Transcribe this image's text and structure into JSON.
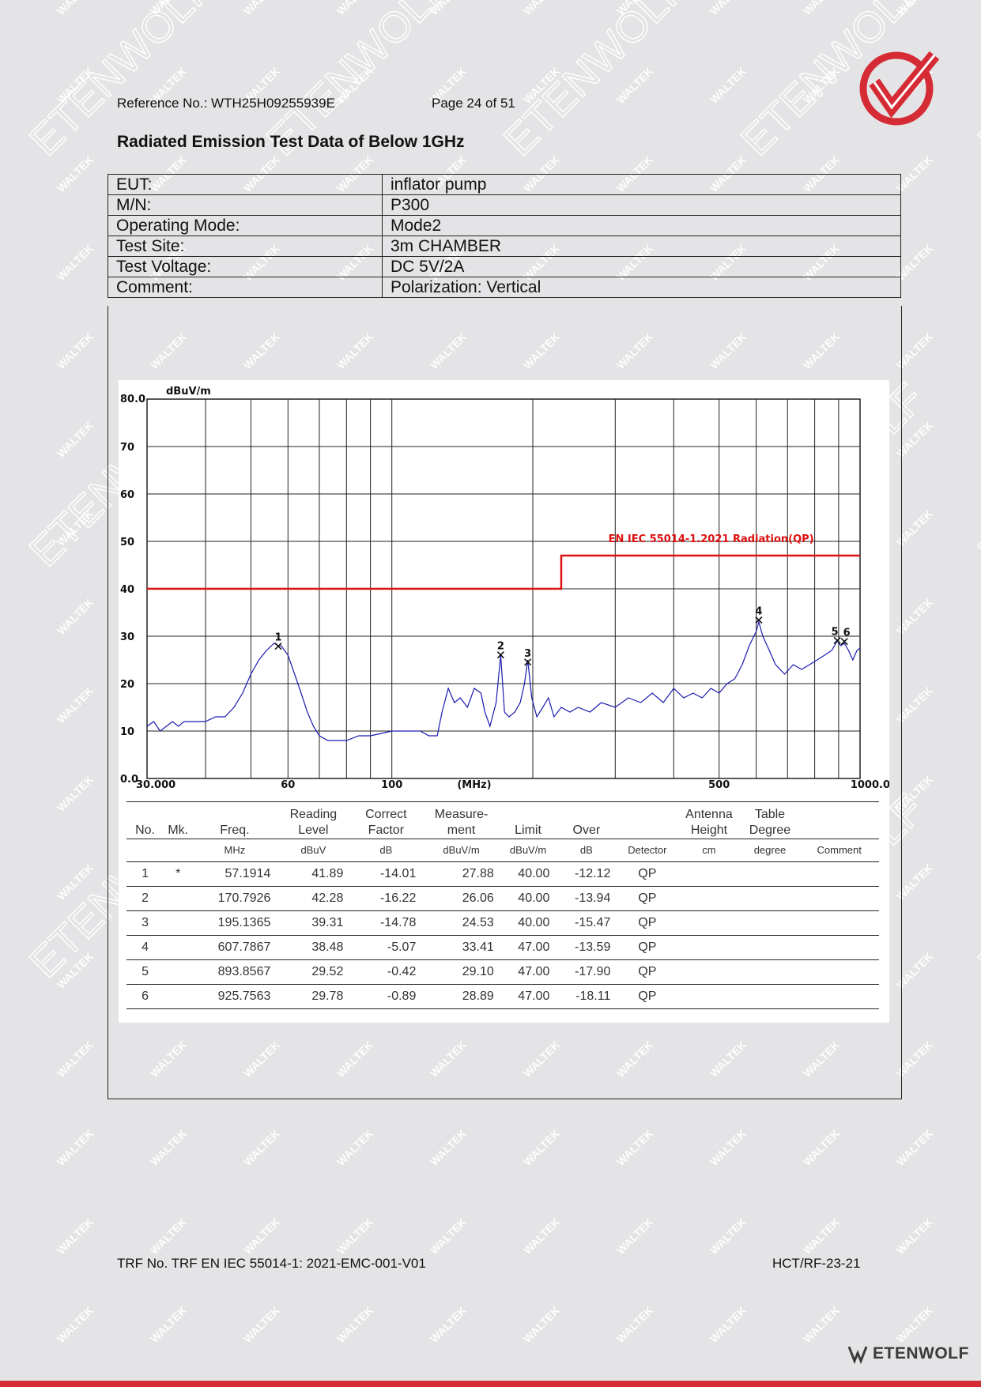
{
  "header": {
    "reference": "Reference No.: WTH25H09255939E",
    "page": "Page 24 of 51"
  },
  "title": "Radiated Emission Test Data of Below 1GHz",
  "info": [
    {
      "label": "EUT:",
      "value": "inflator pump"
    },
    {
      "label": "M/N:",
      "value": "P300"
    },
    {
      "label": "Operating Mode:",
      "value": "Mode2"
    },
    {
      "label": "Test Site:",
      "value": "3m CHAMBER"
    },
    {
      "label": "Test Voltage:",
      "value": "DC 5V/2A"
    },
    {
      "label": "Comment:",
      "value": "Polarization: Vertical"
    }
  ],
  "chart_data": {
    "type": "line",
    "ylabel": "dBuV/m",
    "xlabel": "(MHz)",
    "x_scale": "log",
    "xlim": [
      30,
      1000
    ],
    "ylim": [
      0,
      80
    ],
    "y_ticks": [
      "80.0",
      "70",
      "60",
      "50",
      "40",
      "30",
      "20",
      "10",
      "0.0"
    ],
    "x_ticks": [
      {
        "label": "30.000",
        "value": 30
      },
      {
        "label": "60",
        "value": 60
      },
      {
        "label": "100",
        "value": 100
      },
      {
        "label": "(MHz)",
        "value": 150
      },
      {
        "label": "500",
        "value": 500
      },
      {
        "label": "1000.0",
        "value": 1000
      }
    ],
    "limit_line": {
      "name": "EN IEC 55014-1.2021 Radiation(QP)",
      "color": "#dd1111",
      "points": [
        [
          30,
          40
        ],
        [
          230,
          40
        ],
        [
          230,
          47
        ],
        [
          1000,
          47
        ]
      ]
    },
    "trace": {
      "color": "#1a1ab0",
      "points": [
        [
          30,
          11
        ],
        [
          31,
          12
        ],
        [
          32,
          10
        ],
        [
          33,
          11
        ],
        [
          34,
          12
        ],
        [
          35,
          11
        ],
        [
          36,
          12
        ],
        [
          38,
          12
        ],
        [
          40,
          12
        ],
        [
          42,
          13
        ],
        [
          44,
          13
        ],
        [
          46,
          15
        ],
        [
          48,
          18
        ],
        [
          50,
          22
        ],
        [
          52,
          25
        ],
        [
          54,
          27
        ],
        [
          56,
          28.5
        ],
        [
          57.2,
          28
        ],
        [
          58,
          28
        ],
        [
          60,
          26
        ],
        [
          62,
          22
        ],
        [
          64,
          18
        ],
        [
          66,
          14
        ],
        [
          68,
          11
        ],
        [
          70,
          9
        ],
        [
          73,
          8
        ],
        [
          76,
          8
        ],
        [
          80,
          8
        ],
        [
          85,
          9
        ],
        [
          90,
          9
        ],
        [
          95,
          9.5
        ],
        [
          100,
          10
        ],
        [
          105,
          10
        ],
        [
          110,
          10
        ],
        [
          115,
          10
        ],
        [
          120,
          9
        ],
        [
          125,
          9
        ],
        [
          128,
          14
        ],
        [
          132,
          19
        ],
        [
          136,
          16
        ],
        [
          140,
          17
        ],
        [
          145,
          15
        ],
        [
          150,
          19
        ],
        [
          155,
          18
        ],
        [
          158,
          14
        ],
        [
          162,
          11
        ],
        [
          167,
          16
        ],
        [
          170.8,
          26
        ],
        [
          174,
          14
        ],
        [
          178,
          13
        ],
        [
          183,
          14
        ],
        [
          188,
          16
        ],
        [
          192,
          20
        ],
        [
          195.1,
          25
        ],
        [
          199,
          17
        ],
        [
          204,
          13
        ],
        [
          210,
          15
        ],
        [
          216,
          17
        ],
        [
          222,
          13
        ],
        [
          230,
          15
        ],
        [
          240,
          14
        ],
        [
          250,
          15
        ],
        [
          265,
          14
        ],
        [
          280,
          16
        ],
        [
          300,
          15
        ],
        [
          320,
          17
        ],
        [
          340,
          16
        ],
        [
          360,
          18
        ],
        [
          380,
          16
        ],
        [
          400,
          19
        ],
        [
          420,
          17
        ],
        [
          440,
          18
        ],
        [
          460,
          17
        ],
        [
          480,
          19
        ],
        [
          500,
          18
        ],
        [
          520,
          20
        ],
        [
          540,
          21
        ],
        [
          560,
          24
        ],
        [
          580,
          28
        ],
        [
          600,
          31
        ],
        [
          607.8,
          33
        ],
        [
          620,
          30
        ],
        [
          640,
          27
        ],
        [
          660,
          24
        ],
        [
          690,
          22
        ],
        [
          720,
          24
        ],
        [
          750,
          23
        ],
        [
          780,
          24
        ],
        [
          810,
          25
        ],
        [
          840,
          26
        ],
        [
          870,
          27
        ],
        [
          893.9,
          29
        ],
        [
          910,
          28
        ],
        [
          925.8,
          28.5
        ],
        [
          945,
          27
        ],
        [
          965,
          25
        ],
        [
          985,
          27
        ],
        [
          1000,
          27.5
        ]
      ]
    },
    "markers": [
      {
        "label": "1",
        "freq": 57.1914,
        "level": 27.88
      },
      {
        "label": "2",
        "freq": 170.7926,
        "level": 26.06
      },
      {
        "label": "3",
        "freq": 195.1365,
        "level": 24.53
      },
      {
        "label": "4",
        "freq": 607.7867,
        "level": 33.41
      },
      {
        "label": "5",
        "freq": 893.8567,
        "level": 29.1
      },
      {
        "label": "6",
        "freq": 925.7563,
        "level": 28.89
      }
    ]
  },
  "table": {
    "headers": [
      [
        "No.",
        ""
      ],
      [
        "Mk.",
        ""
      ],
      [
        "Freq.",
        ""
      ],
      [
        "Reading",
        "Level"
      ],
      [
        "Correct",
        "Factor"
      ],
      [
        "Measure-",
        "ment"
      ],
      [
        "Limit",
        ""
      ],
      [
        "Over",
        ""
      ],
      [
        "",
        ""
      ],
      [
        "Antenna",
        "Height"
      ],
      [
        "Table",
        "Degree"
      ],
      [
        "",
        ""
      ]
    ],
    "units": [
      "",
      "",
      "MHz",
      "dBuV",
      "dB",
      "dBuV/m",
      "dBuV/m",
      "dB",
      "Detector",
      "cm",
      "degree",
      "Comment"
    ],
    "rows": [
      [
        "1",
        "*",
        "57.1914",
        "41.89",
        "-14.01",
        "27.88",
        "40.00",
        "-12.12",
        "QP",
        "",
        "",
        ""
      ],
      [
        "2",
        "",
        "170.7926",
        "42.28",
        "-16.22",
        "26.06",
        "40.00",
        "-13.94",
        "QP",
        "",
        "",
        ""
      ],
      [
        "3",
        "",
        "195.1365",
        "39.31",
        "-14.78",
        "24.53",
        "40.00",
        "-15.47",
        "QP",
        "",
        "",
        ""
      ],
      [
        "4",
        "",
        "607.7867",
        "38.48",
        "-5.07",
        "33.41",
        "47.00",
        "-13.59",
        "QP",
        "",
        "",
        ""
      ],
      [
        "5",
        "",
        "893.8567",
        "29.52",
        "-0.42",
        "29.10",
        "47.00",
        "-17.90",
        "QP",
        "",
        "",
        ""
      ],
      [
        "6",
        "",
        "925.7563",
        "29.78",
        "-0.89",
        "28.89",
        "47.00",
        "-18.11",
        "QP",
        "",
        "",
        ""
      ]
    ]
  },
  "footer": {
    "trf": "TRF No. TRF EN IEC 55014-1: 2021-EMC-001-V01",
    "code": "HCT/RF-23-21",
    "brand": "ETENWOLF"
  },
  "watermark": {
    "small": "WALTEK",
    "large": "ETENWOLF"
  },
  "colors": {
    "brand_red": "#d52b35",
    "limit": "#dd1111",
    "trace": "#1a1ab0"
  }
}
